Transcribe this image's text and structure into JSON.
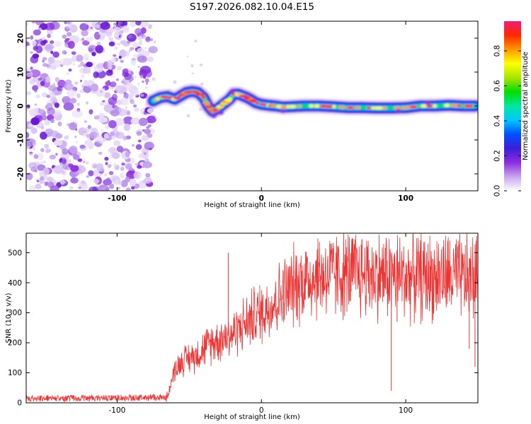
{
  "title": "S197.2026.082.10.04.E15",
  "chart_data": [
    {
      "type": "heatmap",
      "xlabel": "Height of straight line (km)",
      "ylabel": "Frequency (Hz)",
      "xlim": [
        -163,
        150
      ],
      "ylim": [
        -25,
        25
      ],
      "x_ticks": [
        -100,
        0,
        100
      ],
      "x_tick_labels": [
        "-100",
        "0",
        "100"
      ],
      "y_ticks": [
        20,
        10,
        0,
        -10,
        -20
      ],
      "y_tick_labels": [
        "20",
        "10",
        "0",
        "-10",
        "-20"
      ],
      "noise_region_x": [
        -163,
        -75
      ],
      "signal_track": {
        "x": [
          -75,
          -70,
          -65,
          -60,
          -56,
          -52,
          -48,
          -44,
          -40,
          -37,
          -34,
          -31,
          -28,
          -25,
          -22,
          -19,
          -16,
          -13,
          -10,
          -7,
          -4,
          0,
          5,
          10,
          15,
          20,
          30,
          40,
          50,
          60,
          70,
          80,
          90,
          100,
          110,
          120,
          130,
          140,
          148
        ],
        "freq_hz": [
          1.5,
          2.5,
          2.8,
          2.0,
          3.0,
          4.0,
          4.3,
          4.0,
          2.5,
          0.0,
          -1.5,
          -1.0,
          0.0,
          1.0,
          2.0,
          3.5,
          3.5,
          3.0,
          2.5,
          1.8,
          1.0,
          0.5,
          0.2,
          0.0,
          -0.3,
          -0.2,
          0.0,
          0.0,
          -0.2,
          -0.5,
          -0.5,
          -0.6,
          -0.6,
          -0.5,
          0.0,
          0.0,
          0.2,
          0.0,
          0.0
        ]
      },
      "colorbar": {
        "label": "Normalized spectral amplitude",
        "ticks": [
          0.0,
          0.2,
          0.4,
          0.6,
          0.8
        ],
        "tick_labels": [
          "0.0",
          "0.2",
          "0.4",
          "0.6",
          "0.8"
        ],
        "range": [
          0,
          0.97
        ],
        "colors": [
          "#ffffff",
          "#c6a6ee",
          "#8c2ce0",
          "#3d1ed8",
          "#0050ff",
          "#00c8ff",
          "#00e6a0",
          "#00dd00",
          "#a8e600",
          "#ffff00",
          "#ff9900",
          "#ff2800",
          "#ee1e78"
        ]
      }
    },
    {
      "type": "line",
      "xlabel": "Height of straight line (km)",
      "ylabel": "SNR (10 * v/v)",
      "xlim": [
        -163,
        150
      ],
      "ylim": [
        0,
        565
      ],
      "x_ticks": [
        -100,
        0,
        100
      ],
      "x_tick_labels": [
        "-100",
        "0",
        "100"
      ],
      "y_ticks": [
        0,
        100,
        200,
        300,
        400,
        500
      ],
      "y_tick_labels": [
        "0",
        "100",
        "200",
        "300",
        "400",
        "500"
      ],
      "line_color": "#ee3333",
      "series": [
        {
          "name": "SNR",
          "x": [
            -163,
            -140,
            -120,
            -100,
            -80,
            -66,
            -64,
            -62,
            -60,
            -55,
            -50,
            -45,
            -40,
            -35,
            -30,
            -25,
            -20,
            -15,
            -10,
            -5,
            0,
            5,
            10,
            15,
            20,
            25,
            30,
            35,
            40,
            50,
            60,
            70,
            80,
            90,
            100,
            110,
            120,
            130,
            140,
            150
          ],
          "y": [
            15,
            15,
            16,
            16,
            17,
            18,
            40,
            80,
            110,
            140,
            150,
            160,
            180,
            200,
            210,
            220,
            230,
            250,
            270,
            290,
            300,
            320,
            340,
            360,
            380,
            400,
            410,
            420,
            425,
            425,
            430,
            430,
            425,
            425,
            420,
            420,
            420,
            420,
            415,
            415
          ],
          "spike_x": [
            -23,
            90,
            94,
            144,
            148,
            150
          ],
          "spike_y": [
            500,
            40,
            270,
            180,
            120,
            160
          ]
        }
      ]
    }
  ]
}
